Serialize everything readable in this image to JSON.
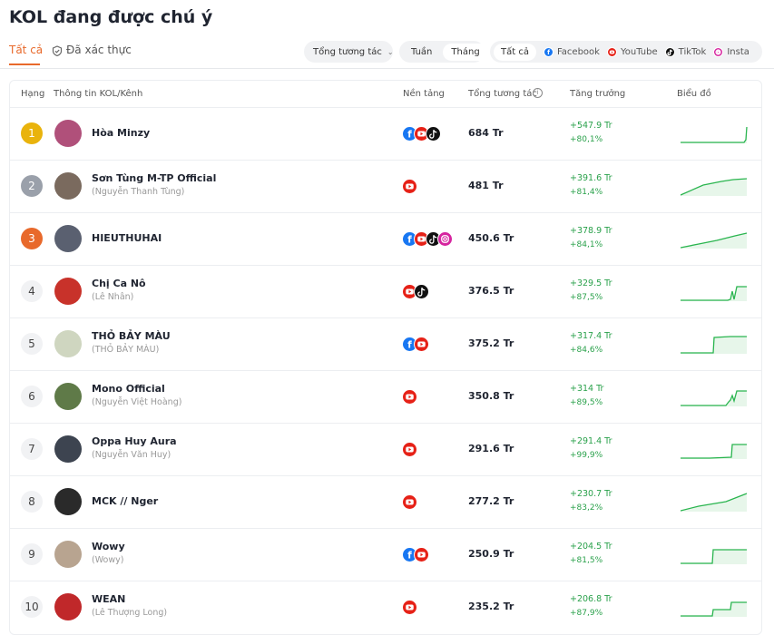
{
  "header": {
    "title": "KOL đang được chú ý"
  },
  "tabs": [
    "Tất cả",
    "Đã xác thực"
  ],
  "filters": {
    "metric": "Tổng tương tác",
    "period": [
      "Tuần",
      "Tháng"
    ],
    "platforms": [
      "Tất cả",
      "Facebook",
      "YouTube",
      "TikTok",
      "Insta"
    ]
  },
  "table": {
    "columns": [
      "Hạng",
      "Thông tin KOL/Kênh",
      "Nền tảng",
      "Tổng tương tác",
      "Tăng trưởng",
      "Biểu đồ"
    ],
    "rows": [
      {
        "rank": 1,
        "name": "Hòa Minzy",
        "total": "684 Tr",
        "growth": "+547.9 Tr",
        "growth_pct": "+80,1%"
      },
      {
        "rank": 2,
        "name": "Sơn Tùng M-TP Official",
        "subname": "(Nguyễn Thanh Tùng)",
        "total": "481 Tr",
        "growth": "+391.6 Tr",
        "growth_pct": "+81,4%"
      },
      {
        "rank": 3,
        "name": "HIEUTHUHAI",
        "total": "450.6 Tr",
        "growth": "+378.9 Tr",
        "growth_pct": "+84,1%"
      },
      {
        "rank": 4,
        "name": "Chị Ca Nô",
        "subname": "(Lê Nhân)",
        "total": "376.5 Tr",
        "growth": "+329.5 Tr",
        "growth_pct": "+87,5%"
      },
      {
        "rank": 5,
        "name": "THỎ BẢY MÀU",
        "subname": "(THỎ BẢY MÀU)",
        "total": "375.2 Tr",
        "growth": "+317.4 Tr",
        "growth_pct": "+84,6%"
      },
      {
        "rank": 6,
        "name": "Mono Official",
        "subname": "(Nguyễn Việt Hoàng)",
        "total": "350.8 Tr",
        "growth": "+314 Tr",
        "growth_pct": "+89,5%"
      },
      {
        "rank": 7,
        "name": "Oppa Huy Aura",
        "subname": "(Nguyễn Văn Huy)",
        "total": "291.6 Tr",
        "growth": "+291.4 Tr",
        "growth_pct": "+99,9%"
      },
      {
        "rank": 8,
        "name": "MCK // Nger",
        "total": "277.2 Tr",
        "growth": "+230.7 Tr",
        "growth_pct": "+83,2%"
      },
      {
        "rank": 9,
        "name": "Wowy",
        "subname": "(Wowy)",
        "total": "250.9 Tr",
        "growth": "+204.5 Tr",
        "growth_pct": "+81,5%"
      },
      {
        "rank": 10,
        "name": "WEAN",
        "subname": "(Lê Thượng Long)",
        "total": "235.2 Tr",
        "growth": "+206.8 Tr",
        "growth_pct": "+87,9%"
      }
    ]
  }
}
